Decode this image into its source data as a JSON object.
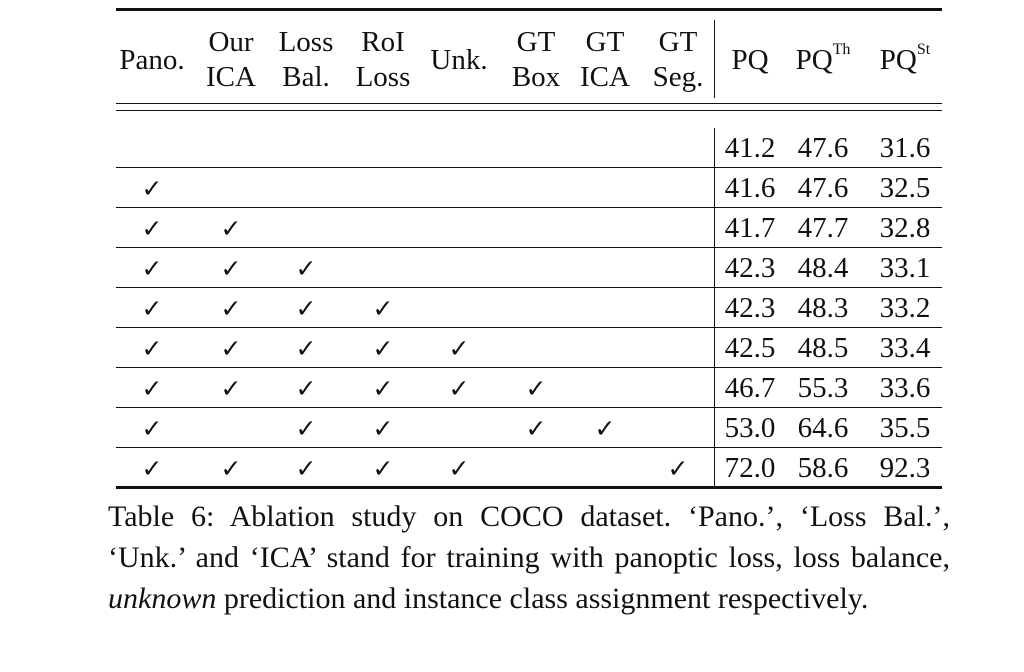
{
  "table": {
    "headers": [
      {
        "lines": [
          "Pano."
        ]
      },
      {
        "lines": [
          "Our",
          "ICA"
        ]
      },
      {
        "lines": [
          "Loss",
          "Bal."
        ]
      },
      {
        "lines": [
          "RoI",
          "Loss"
        ]
      },
      {
        "lines": [
          "Unk."
        ]
      },
      {
        "lines": [
          "GT",
          "Box"
        ]
      },
      {
        "lines": [
          "GT",
          "ICA"
        ]
      },
      {
        "lines": [
          "GT",
          "Seg."
        ]
      },
      {
        "lines": [
          "PQ"
        ]
      },
      {
        "base": "PQ",
        "sup": "Th"
      },
      {
        "base": "PQ",
        "sup": "St"
      }
    ],
    "check_mark": "✓",
    "rows": [
      {
        "checks": [
          false,
          false,
          false,
          false,
          false,
          false,
          false,
          false
        ],
        "pq": "41.2",
        "pq_th": "47.6",
        "pq_st": "31.6"
      },
      {
        "checks": [
          true,
          false,
          false,
          false,
          false,
          false,
          false,
          false
        ],
        "pq": "41.6",
        "pq_th": "47.6",
        "pq_st": "32.5"
      },
      {
        "checks": [
          true,
          true,
          false,
          false,
          false,
          false,
          false,
          false
        ],
        "pq": "41.7",
        "pq_th": "47.7",
        "pq_st": "32.8"
      },
      {
        "checks": [
          true,
          true,
          true,
          false,
          false,
          false,
          false,
          false
        ],
        "pq": "42.3",
        "pq_th": "48.4",
        "pq_st": "33.1"
      },
      {
        "checks": [
          true,
          true,
          true,
          true,
          false,
          false,
          false,
          false
        ],
        "pq": "42.3",
        "pq_th": "48.3",
        "pq_st": "33.2"
      },
      {
        "checks": [
          true,
          true,
          true,
          true,
          true,
          false,
          false,
          false
        ],
        "pq": "42.5",
        "pq_th": "48.5",
        "pq_st": "33.4"
      },
      {
        "checks": [
          true,
          true,
          true,
          true,
          true,
          true,
          false,
          false
        ],
        "pq": "46.7",
        "pq_th": "55.3",
        "pq_st": "33.6"
      },
      {
        "checks": [
          true,
          false,
          true,
          true,
          false,
          true,
          true,
          false
        ],
        "pq": "53.0",
        "pq_th": "64.6",
        "pq_st": "35.5"
      },
      {
        "checks": [
          true,
          true,
          true,
          true,
          true,
          false,
          false,
          true
        ],
        "pq": "72.0",
        "pq_th": "58.6",
        "pq_st": "92.3"
      }
    ]
  },
  "caption": {
    "prefix": "Table 6: Ablation study on COCO dataset. ‘Pano.’, ‘Loss Bal.’, ‘Unk.’ and ‘ICA’ stand for training with panoptic loss, loss balance, ",
    "emphasis": "unknown",
    "suffix": " prediction and instance class assignment respectively."
  }
}
